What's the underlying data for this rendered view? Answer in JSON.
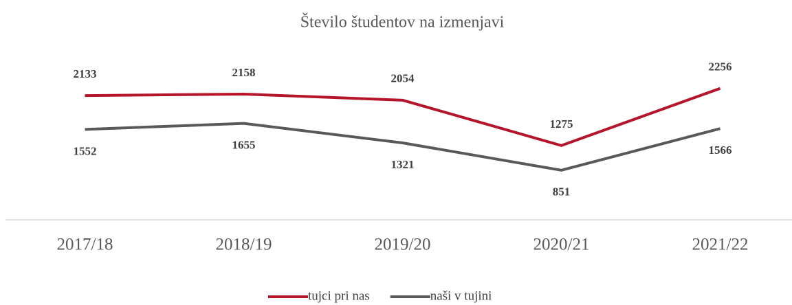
{
  "chart_data": {
    "type": "line",
    "title": "Število študentov na izmenjavi",
    "categories": [
      "2017/18",
      "2018/19",
      "2019/20",
      "2020/21",
      "2021/22"
    ],
    "series": [
      {
        "name": "tujci pri nas",
        "color": "#b5152b",
        "values": [
          2133,
          2158,
          2054,
          1275,
          2256
        ]
      },
      {
        "name": "naši v tujini",
        "color": "#595959",
        "values": [
          1552,
          1655,
          1321,
          851,
          1566
        ]
      }
    ],
    "ylim": [
      0,
      2500
    ],
    "legend": "bottom"
  }
}
